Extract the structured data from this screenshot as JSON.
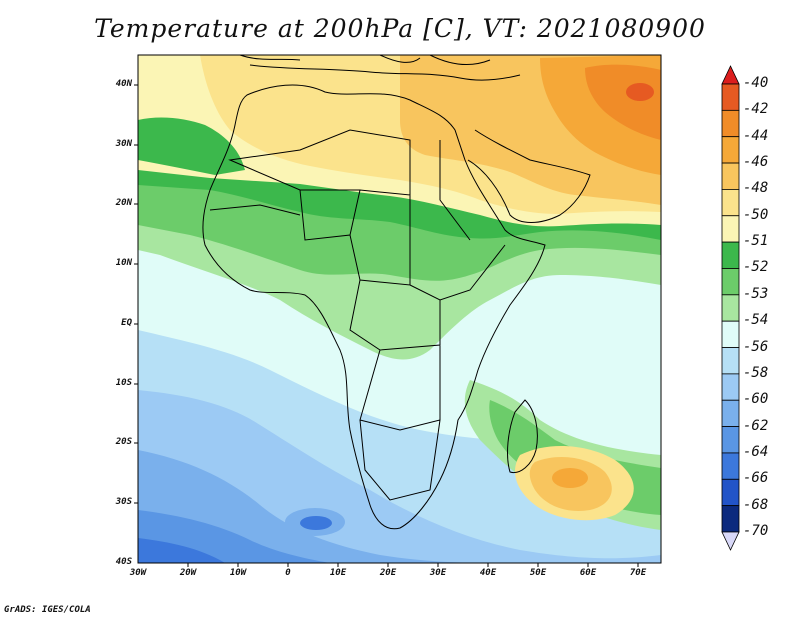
{
  "title": "Temperature at 200hPa [C], VT: 2021080900",
  "credit": "GrADS: IGES/COLA",
  "map": {
    "region": "Africa",
    "variable": "Temperature",
    "level": "200hPa",
    "units": "C",
    "valid_time": "2021080900",
    "lat_labels": [
      "40N",
      "30N",
      "20N",
      "10N",
      "EQ",
      "10S",
      "20S",
      "30S",
      "40S"
    ],
    "lon_labels": [
      "30W",
      "20W",
      "10W",
      "0",
      "10E",
      "20E",
      "30E",
      "40E",
      "50E",
      "60E",
      "70E"
    ]
  },
  "colorbar": {
    "levels": [
      "-40",
      "-42",
      "-44",
      "-46",
      "-48",
      "-50",
      "-51",
      "-52",
      "-53",
      "-54",
      "-56",
      "-58",
      "-60",
      "-62",
      "-64",
      "-66",
      "-68",
      "-70"
    ],
    "colors": [
      "#dc1e1e",
      "#e65a22",
      "#f08c28",
      "#f5a838",
      "#f8c55e",
      "#fbe38c",
      "#fbf5b5",
      "#3cb84c",
      "#6ccc6a",
      "#a8e6a0",
      "#e0fcf8",
      "#b6e0f6",
      "#9ccaf4",
      "#7ab0ec",
      "#5a96e4",
      "#3c78dc",
      "#2254c8",
      "#0c2a7e",
      "#d8d8f8"
    ]
  }
}
